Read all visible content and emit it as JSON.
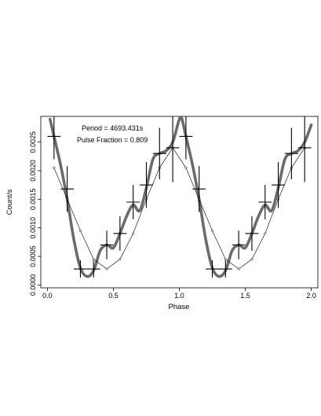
{
  "chart_data": {
    "type": "scatter",
    "title": "",
    "xlabel": "Phase",
    "ylabel": "Count/s",
    "xlim": [
      -0.05,
      2.05
    ],
    "ylim": [
      -5e-05,
      0.00295
    ],
    "x_ticks": [
      0.0,
      0.5,
      1.0,
      1.5,
      2.0
    ],
    "x_tick_labels": [
      "0.0",
      "0.5",
      "1.0",
      "1.5",
      "2.0"
    ],
    "y_ticks": [
      0.0,
      0.0005,
      0.001,
      0.0015,
      0.002,
      0.0025
    ],
    "y_tick_labels": [
      "0.0000",
      "0.0005",
      "0.0010",
      "0.0015",
      "0.0020",
      "0.0025"
    ],
    "grid": false,
    "legend": "none",
    "annotations": [
      "Period = 4693.431s",
      "Pulse Fraction = 0.809"
    ],
    "series": [
      {
        "type": "errorbar",
        "color": "#000000",
        "x": [
          0.05,
          0.15,
          0.25,
          0.35,
          0.45,
          0.55,
          0.65,
          0.75,
          0.85,
          0.95,
          1.05,
          1.15,
          1.25,
          1.35,
          1.45,
          1.55,
          1.65,
          1.75,
          1.85,
          1.95
        ],
        "x_err": [
          0.05,
          0.05,
          0.05,
          0.05,
          0.05,
          0.05,
          0.05,
          0.05,
          0.05,
          0.05,
          0.05,
          0.05,
          0.05,
          0.05,
          0.05,
          0.05,
          0.05,
          0.05,
          0.05,
          0.05
        ],
        "y": [
          0.0026,
          0.00168,
          0.00028,
          0.00028,
          0.0007,
          0.0009,
          0.00145,
          0.00175,
          0.0023,
          0.0024,
          0.0026,
          0.00168,
          0.00028,
          0.00028,
          0.0007,
          0.0009,
          0.00145,
          0.00175,
          0.0023,
          0.0024
        ],
        "y_err": [
          0.0004,
          0.0004,
          0.00015,
          0.00015,
          0.00025,
          0.0003,
          0.0003,
          0.0004,
          0.00045,
          0.0006,
          0.0004,
          0.0004,
          0.00015,
          0.00015,
          0.00025,
          0.0003,
          0.0003,
          0.0004,
          0.00045,
          0.0006
        ]
      },
      {
        "type": "line",
        "color": "#000000",
        "markers": "circle",
        "x": [
          0.05,
          0.15,
          0.25,
          0.35,
          0.45,
          0.55,
          0.65,
          0.75,
          0.85,
          0.95,
          1.05,
          1.15,
          1.25,
          1.35,
          1.45,
          1.55,
          1.65,
          1.75,
          1.85,
          1.95
        ],
        "y": [
          0.00205,
          0.0015,
          0.00095,
          0.00045,
          0.00028,
          0.00045,
          0.0009,
          0.0015,
          0.00205,
          0.0024,
          0.00205,
          0.0015,
          0.00095,
          0.00045,
          0.00028,
          0.00045,
          0.0009,
          0.0015,
          0.00205,
          0.0024
        ]
      },
      {
        "type": "line",
        "color": "#6b6b6b",
        "x": [
          0.02,
          0.05,
          0.1,
          0.15,
          0.2,
          0.25,
          0.3,
          0.35,
          0.4,
          0.45,
          0.5,
          0.55,
          0.6,
          0.65,
          0.7,
          0.75,
          0.8,
          0.85,
          0.9,
          0.95,
          1.0,
          1.02,
          1.05,
          1.1,
          1.15,
          1.2,
          1.25,
          1.3,
          1.35,
          1.4,
          1.45,
          1.5,
          1.55,
          1.6,
          1.65,
          1.7,
          1.75,
          1.8,
          1.85,
          1.9,
          1.95,
          2.0
        ],
        "y": [
          0.0029,
          0.0026,
          0.0021,
          0.0015,
          0.0008,
          0.0003,
          0.00015,
          0.00025,
          0.0006,
          0.0007,
          0.00065,
          0.0009,
          0.0012,
          0.0014,
          0.0013,
          0.0017,
          0.0022,
          0.0023,
          0.00235,
          0.0025,
          0.0029,
          0.0029,
          0.0026,
          0.0021,
          0.0015,
          0.0008,
          0.0003,
          0.00015,
          0.00025,
          0.0006,
          0.0007,
          0.00065,
          0.0009,
          0.0012,
          0.0014,
          0.0013,
          0.0017,
          0.0022,
          0.0023,
          0.00235,
          0.0025,
          0.0028
        ]
      }
    ]
  }
}
